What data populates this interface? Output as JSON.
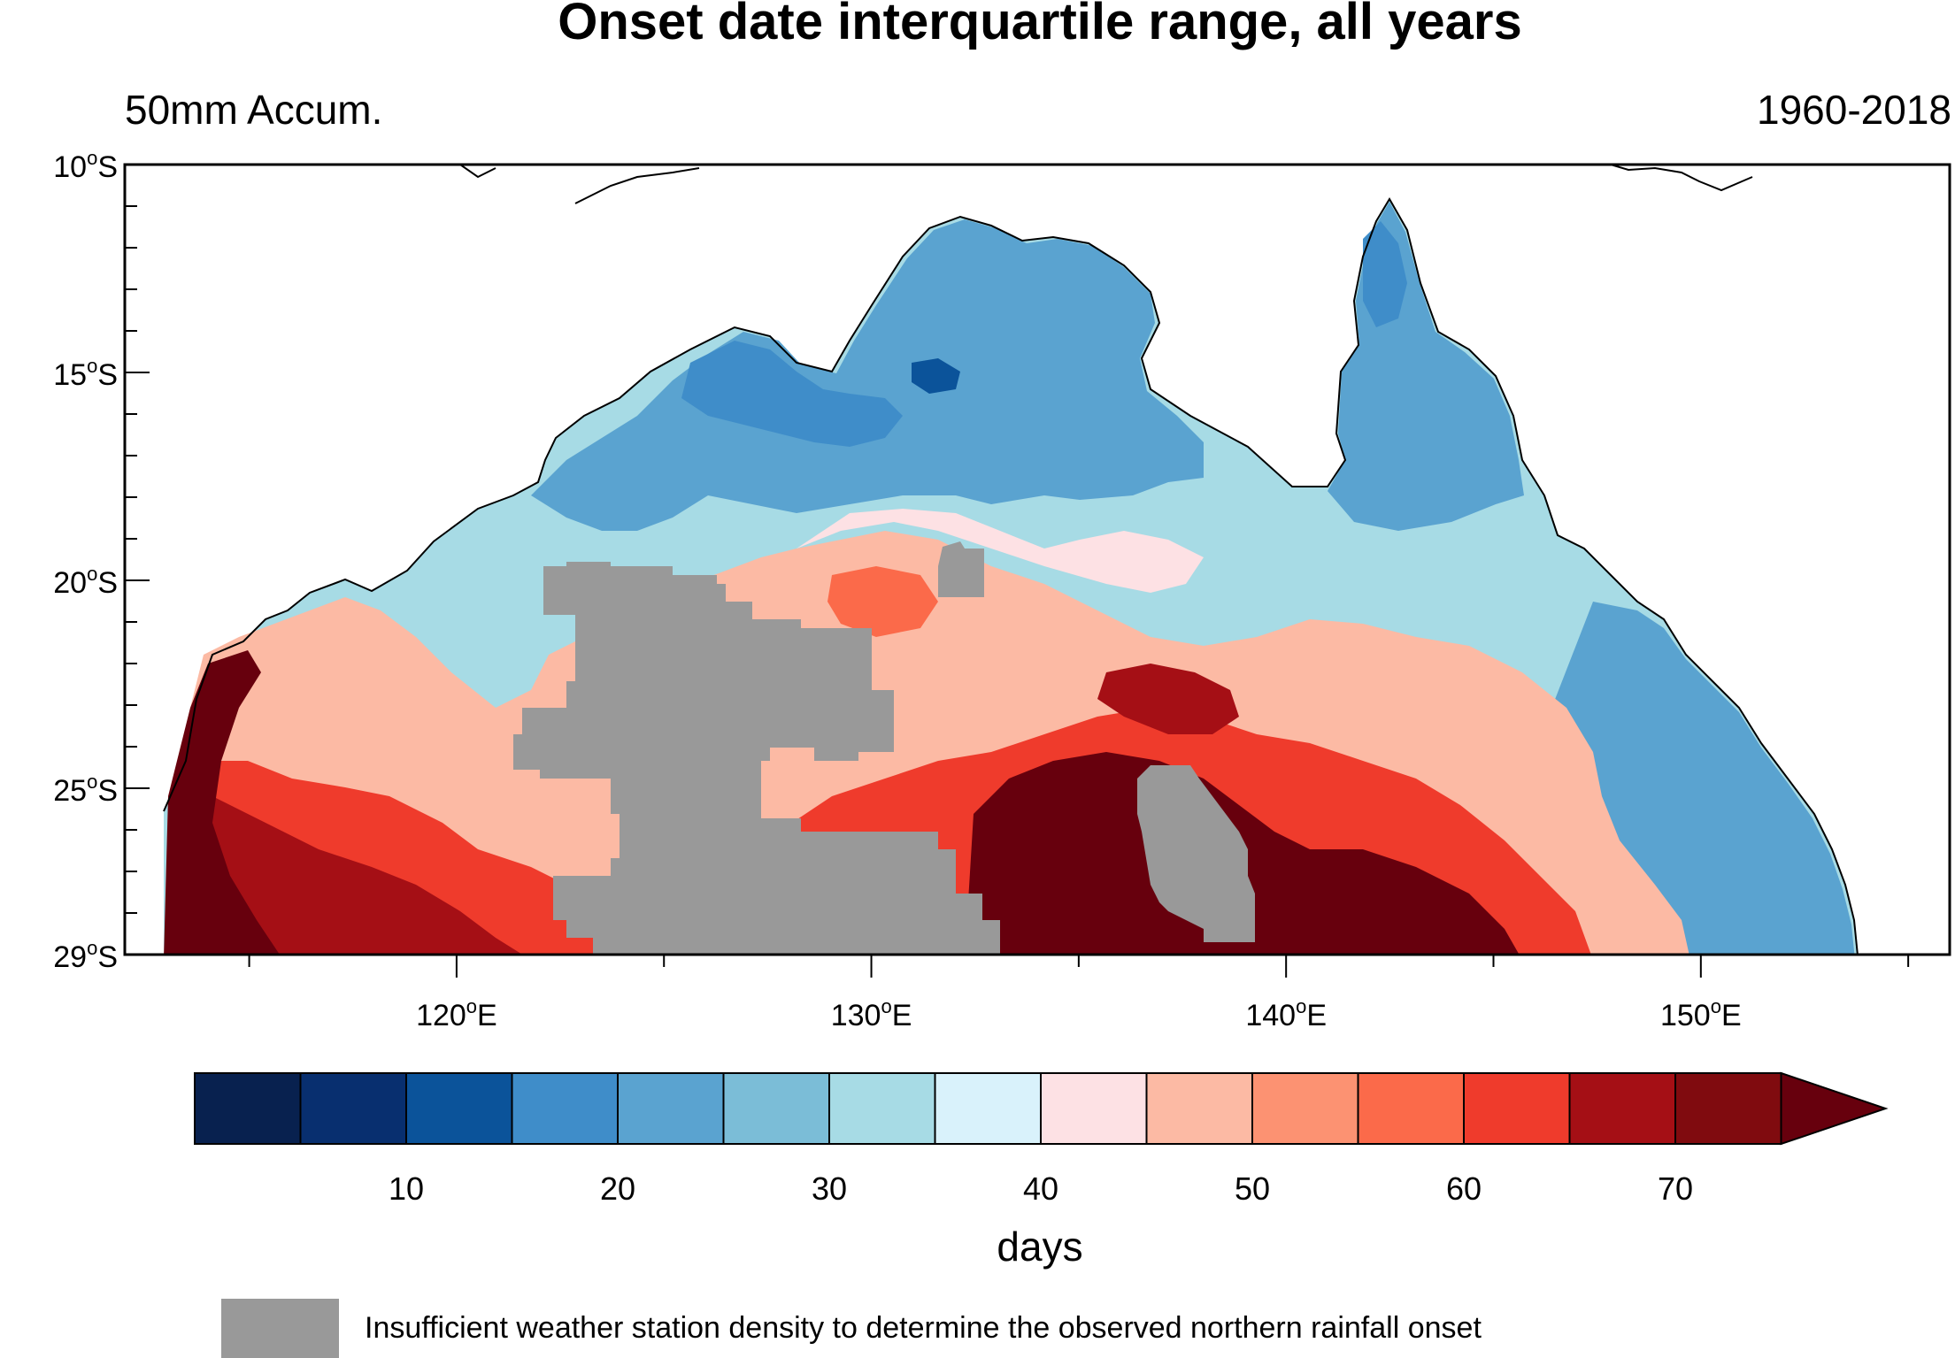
{
  "title": "Onset date interquartile range, all years",
  "subtitle_left": "50mm Accum.",
  "subtitle_right": "1960-2018",
  "lat_ticks": [
    {
      "lat": -10,
      "label": "10",
      "hemi": "S"
    },
    {
      "lat": -15,
      "label": "15",
      "hemi": "S"
    },
    {
      "lat": -20,
      "label": "20",
      "hemi": "S"
    },
    {
      "lat": -25,
      "label": "25",
      "hemi": "S"
    },
    {
      "lat": -29,
      "label": "29",
      "hemi": "S"
    }
  ],
  "lon_ticks": [
    {
      "lon": 120,
      "label": "120",
      "hemi": "E"
    },
    {
      "lon": 130,
      "label": "130",
      "hemi": "E"
    },
    {
      "lon": 140,
      "label": "140",
      "hemi": "E"
    },
    {
      "lon": 150,
      "label": "150",
      "hemi": "E"
    }
  ],
  "map_extent": {
    "lon": [
      112,
      156
    ],
    "lat": [
      -29,
      -10
    ]
  },
  "colorbar": {
    "label": "days",
    "colors": [
      "#08214f",
      "#082f6f",
      "#0b539a",
      "#3f8dc9",
      "#5aa3d0",
      "#7bbdd7",
      "#a7dbe5",
      "#d9f2fb",
      "#fde1e4",
      "#fcbaa4",
      "#fc9272",
      "#fb6a4a",
      "#ef3b2c",
      "#a50f15",
      "#800b0f",
      "#67000d"
    ],
    "tick_values": [
      10,
      20,
      30,
      40,
      50,
      60,
      70
    ],
    "tick_labels": [
      "10",
      "20",
      "30",
      "40",
      "50",
      "60",
      "70"
    ]
  },
  "legend_note": {
    "color": "#999999",
    "text": "Insufficient weather station density to determine the observed northern rainfall onset"
  }
}
